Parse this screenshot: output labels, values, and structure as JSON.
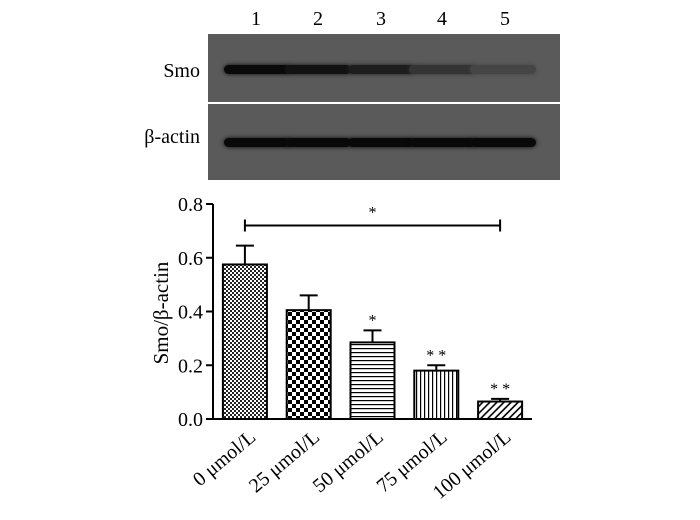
{
  "blot": {
    "lanes": [
      "1",
      "2",
      "3",
      "4",
      "5"
    ],
    "rows": [
      {
        "label": "Smo",
        "intensity": [
          0.95,
          0.85,
          0.72,
          0.45,
          0.25
        ]
      },
      {
        "label": "β-actin",
        "intensity": [
          0.95,
          0.95,
          0.95,
          0.95,
          0.95
        ]
      }
    ]
  },
  "chart_data": {
    "type": "bar",
    "categories": [
      "0 μmol/L",
      "25 μmol/L",
      "50 μmol/L",
      "75 μmol/L",
      "100  μmol/L"
    ],
    "values": [
      0.575,
      0.405,
      0.285,
      0.18,
      0.065
    ],
    "errors": [
      0.07,
      0.055,
      0.045,
      0.02,
      0.01
    ],
    "patterns": [
      "fine-checker",
      "coarse-checker",
      "horizontal-lines",
      "vertical-lines",
      "diagonal-lines"
    ],
    "annotations": [
      "",
      "",
      "*",
      "* *",
      "* *"
    ],
    "bracket": {
      "from": 0,
      "to": 4,
      "y": 0.72,
      "label": "*"
    },
    "ylabel": "Smo/β-actin",
    "ylim": [
      0.0,
      0.8
    ],
    "yticks": [
      "0.0",
      "0.2",
      "0.4",
      "0.6",
      "0.8"
    ],
    "ytick_values": [
      0.0,
      0.2,
      0.4,
      0.6,
      0.8
    ]
  }
}
